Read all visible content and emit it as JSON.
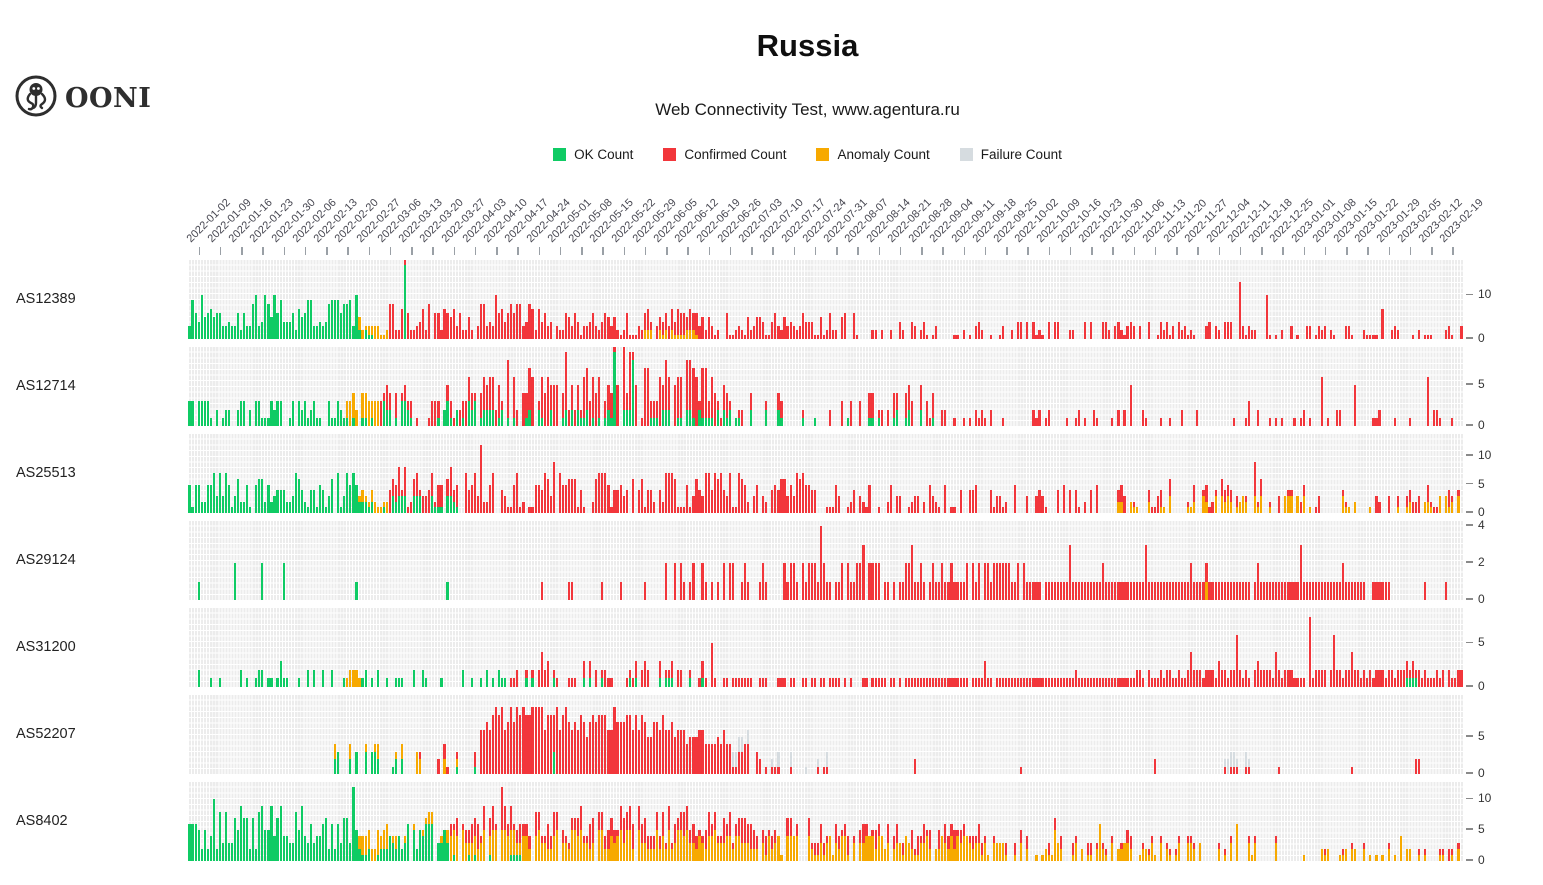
{
  "header": {
    "brand": "OONI"
  },
  "colors": {
    "ok": "#0fcb64",
    "confirmed": "#f2363b",
    "anomaly": "#f7a900",
    "failure": "#d6dce0",
    "plot_bg": "#ececec",
    "grid": "#ffffff",
    "axis_text": "#474751"
  },
  "chart_data": {
    "type": "bar",
    "subtype": "stacked-bars-small-multiples-by-asn",
    "title": "Russia",
    "subtitle": "Web Connectivity Test, www.agentura.ru",
    "legend": [
      {
        "key": "ok",
        "label": "OK Count"
      },
      {
        "key": "confirmed",
        "label": "Confirmed Count"
      },
      {
        "key": "anomaly",
        "label": "Anomaly Count"
      },
      {
        "key": "failure",
        "label": "Failure Count"
      }
    ],
    "x_axis": {
      "start": "2021-12-30",
      "end": "2023-02-22",
      "tick_interval": "weekly",
      "bar_interval": "daily"
    },
    "days_total": 420,
    "week_labels": [
      "2022-01-02",
      "2022-01-09",
      "2022-01-16",
      "2022-01-23",
      "2022-01-30",
      "2022-02-06",
      "2022-02-13",
      "2022-02-20",
      "2022-02-27",
      "2022-03-06",
      "2022-03-13",
      "2022-03-20",
      "2022-03-27",
      "2022-04-03",
      "2022-04-10",
      "2022-04-17",
      "2022-04-24",
      "2022-05-01",
      "2022-05-08",
      "2022-05-15",
      "2022-05-22",
      "2022-05-29",
      "2022-06-05",
      "2022-06-12",
      "2022-06-19",
      "2022-06-26",
      "2022-07-03",
      "2022-07-10",
      "2022-07-17",
      "2022-07-24",
      "2022-07-31",
      "2022-08-07",
      "2022-08-14",
      "2022-08-21",
      "2022-08-28",
      "2022-09-04",
      "2022-09-11",
      "2022-09-18",
      "2022-09-25",
      "2022-10-02",
      "2022-10-09",
      "2022-10-16",
      "2022-10-23",
      "2022-10-30",
      "2022-11-06",
      "2022-11-13",
      "2022-11-20",
      "2022-11-27",
      "2022-12-04",
      "2022-12-11",
      "2022-12-18",
      "2022-12-25",
      "2023-01-01",
      "2023-01-08",
      "2023-01-15",
      "2023-01-22",
      "2023-01-29",
      "2023-02-05",
      "2023-02-12",
      "2023-02-19"
    ],
    "rows": [
      {
        "asn": "AS12389",
        "ymax": 17,
        "yticks": [
          0,
          10
        ],
        "segments": [
          {
            "d": [
              0,
              55
            ],
            "p": 0.97,
            "ok": [
              2,
              10
            ]
          },
          {
            "d": [
              56,
              65
            ],
            "p": 1.0,
            "ok": [
              0,
              2
            ],
            "anomaly": [
              1,
              3
            ]
          },
          {
            "d": [
              66,
              115
            ],
            "p": 0.96,
            "confirmed": [
              2,
              8
            ]
          },
          {
            "d": [
              116,
              149
            ],
            "p": 0.92,
            "confirmed": [
              1,
              6
            ]
          },
          {
            "d": [
              150,
              168
            ],
            "p": 0.95,
            "confirmed": [
              2,
              6
            ],
            "anomaly": [
              0,
              2
            ]
          },
          {
            "d": [
              169,
              220
            ],
            "p": 0.9,
            "confirmed": [
              1,
              6
            ]
          },
          {
            "d": [
              221,
              345
            ],
            "p": 0.55,
            "confirmed": [
              1,
              4
            ]
          },
          {
            "d": [
              346,
              419
            ],
            "p": 0.5,
            "confirmed": [
              1,
              3
            ]
          }
        ],
        "spikes": {
          "71": {
            "ok": 17
          },
          "101": {
            "confirmed": 10
          },
          "346": {
            "confirmed": 13
          },
          "355": {
            "confirmed": 10
          },
          "393": {
            "confirmed": 7
          }
        }
      },
      {
        "asn": "AS12714",
        "ymax": 9,
        "yticks": [
          0,
          5
        ],
        "segments": [
          {
            "d": [
              0,
              51
            ],
            "p": 0.75,
            "ok": [
              1,
              3
            ]
          },
          {
            "d": [
              52,
              62
            ],
            "p": 0.9,
            "ok": [
              0,
              1
            ],
            "anomaly": [
              1,
              3
            ]
          },
          {
            "d": [
              63,
              95
            ],
            "p": 0.85,
            "ok": [
              0,
              3
            ],
            "confirmed": [
              0,
              3
            ]
          },
          {
            "d": [
              96,
              175
            ],
            "p": 0.92,
            "ok": [
              0,
              2
            ],
            "confirmed": [
              1,
              7
            ]
          },
          {
            "d": [
              176,
              245
            ],
            "p": 0.6,
            "ok": [
              0,
              2
            ],
            "confirmed": [
              0,
              3
            ]
          },
          {
            "d": [
              246,
              419
            ],
            "p": 0.28,
            "confirmed": [
              1,
              2
            ]
          }
        ],
        "spikes": {
          "140": {
            "ok": 9
          },
          "143": {
            "confirmed": 8
          },
          "146": {
            "ok": 8
          },
          "150": {
            "confirmed": 7
          },
          "310": {
            "confirmed": 5
          },
          "349": {
            "confirmed": 3
          },
          "373": {
            "confirmed": 6
          },
          "384": {
            "confirmed": 5
          },
          "408": {
            "confirmed": 6
          }
        }
      },
      {
        "asn": "AS25513",
        "ymax": 13,
        "yticks": [
          0,
          5,
          10
        ],
        "segments": [
          {
            "d": [
              0,
              55
            ],
            "p": 0.93,
            "ok": [
              1,
              7
            ]
          },
          {
            "d": [
              56,
              65
            ],
            "p": 0.9,
            "ok": [
              0,
              2
            ],
            "anomaly": [
              1,
              2
            ]
          },
          {
            "d": [
              66,
              90
            ],
            "p": 0.9,
            "ok": [
              0,
              3
            ],
            "confirmed": [
              1,
              5
            ]
          },
          {
            "d": [
              91,
              205
            ],
            "p": 0.9,
            "confirmed": [
              1,
              7
            ]
          },
          {
            "d": [
              206,
              305
            ],
            "p": 0.6,
            "confirmed": [
              1,
              5
            ]
          },
          {
            "d": [
              306,
              419
            ],
            "p": 0.65,
            "confirmed": [
              0,
              3
            ],
            "anomaly": [
              0,
              3
            ]
          }
        ],
        "spikes": {
          "96": {
            "confirmed": 12
          },
          "120": {
            "confirmed": 9
          },
          "351": {
            "confirmed": 6,
            "anomaly": 3
          }
        }
      },
      {
        "asn": "AS29124",
        "ymax": 4,
        "yticks": [
          0,
          2,
          4
        ],
        "segments": [
          {
            "d": [
              0,
              115
            ],
            "p": 0.01,
            "ok": [
              1,
              1
            ]
          },
          {
            "d": [
              116,
              155
            ],
            "p": 0.18,
            "confirmed": [
              1,
              1
            ]
          },
          {
            "d": [
              156,
              195
            ],
            "p": 0.5,
            "confirmed": [
              1,
              2
            ]
          },
          {
            "d": [
              196,
              275
            ],
            "p": 0.9,
            "confirmed": [
              1,
              2
            ]
          },
          {
            "d": [
              276,
              395
            ],
            "p": 0.97,
            "confirmed": [
              1,
              1
            ]
          },
          {
            "d": [
              396,
              419
            ],
            "p": 0.15,
            "confirmed": [
              1,
              1
            ]
          }
        ],
        "spikes": {
          "15": {
            "ok": 2
          },
          "24": {
            "ok": 2
          },
          "31": {
            "ok": 2
          },
          "85": {
            "ok": 1
          },
          "208": {
            "confirmed": 4
          },
          "222": {
            "confirmed": 3
          },
          "238": {
            "confirmed": 3
          },
          "290": {
            "confirmed": 3
          },
          "301": {
            "confirmed": 2
          },
          "315": {
            "confirmed": 3
          },
          "330": {
            "confirmed": 2
          },
          "335": {
            "anomaly": 1
          },
          "352": {
            "confirmed": 2
          },
          "366": {
            "confirmed": 3
          },
          "380": {
            "confirmed": 2
          }
        }
      },
      {
        "asn": "AS31200",
        "ymax": 8.5,
        "yticks": [
          0,
          5
        ],
        "segments": [
          {
            "d": [
              0,
              51
            ],
            "p": 0.35,
            "ok": [
              1,
              2
            ]
          },
          {
            "d": [
              52,
              56
            ],
            "p": 0.9,
            "anomaly": [
              1,
              2
            ]
          },
          {
            "d": [
              57,
              105
            ],
            "p": 0.4,
            "ok": [
              1,
              2
            ]
          },
          {
            "d": [
              106,
              175
            ],
            "p": 0.45,
            "ok": [
              0,
              1
            ],
            "confirmed": [
              1,
              2
            ]
          },
          {
            "d": [
              176,
              238
            ],
            "p": 0.55,
            "confirmed": [
              1,
              1
            ]
          },
          {
            "d": [
              239,
              310
            ],
            "p": 0.95,
            "confirmed": [
              1,
              1
            ]
          },
          {
            "d": [
              311,
              419
            ],
            "p": 0.95,
            "confirmed": [
              1,
              2
            ]
          }
        ],
        "spikes": {
          "30": {
            "ok": 3
          },
          "116": {
            "confirmed": 4
          },
          "118": {
            "confirmed": 3
          },
          "150": {
            "confirmed": 3
          },
          "172": {
            "confirmed": 5
          },
          "262": {
            "confirmed": 3
          },
          "292": {
            "confirmed": 2
          },
          "330": {
            "confirmed": 4
          },
          "339": {
            "confirmed": 3
          },
          "345": {
            "confirmed": 6
          },
          "352": {
            "confirmed": 3
          },
          "358": {
            "confirmed": 4
          },
          "369": {
            "confirmed": 8
          },
          "377": {
            "confirmed": 6
          },
          "383": {
            "confirmed": 4
          },
          "401": {
            "ok": 1
          },
          "402": {
            "ok": 1
          },
          "403": {
            "ok": 1
          },
          "404": {
            "ok": 1
          }
        }
      },
      {
        "asn": "AS52207",
        "ymax": 10,
        "yticks": [
          0,
          5
        ],
        "segments": [
          {
            "d": [
              0,
              45
            ],
            "p": 0.02,
            "ok": [
              1,
              1
            ]
          },
          {
            "d": [
              46,
              70
            ],
            "p": 0.5,
            "ok": [
              1,
              3
            ],
            "anomaly": [
              0,
              2
            ]
          },
          {
            "d": [
              71,
              95
            ],
            "p": 0.5,
            "ok": [
              0,
              1
            ],
            "confirmed": [
              1,
              2
            ],
            "anomaly": [
              0,
              2
            ]
          },
          {
            "d": [
              96,
              130
            ],
            "p": 0.97,
            "confirmed": [
              6,
              9
            ]
          },
          {
            "d": [
              131,
              160
            ],
            "p": 0.97,
            "confirmed": [
              5,
              8
            ]
          },
          {
            "d": [
              161,
              178
            ],
            "p": 0.95,
            "confirmed": [
              4,
              6
            ]
          },
          {
            "d": [
              179,
              192
            ],
            "p": 0.7,
            "confirmed": [
              1,
              4
            ],
            "failure": [
              0,
              2
            ]
          },
          {
            "d": [
              193,
              210
            ],
            "p": 0.4,
            "confirmed": [
              0,
              1
            ],
            "failure": [
              0,
              2
            ]
          },
          {
            "d": [
              211,
              340
            ],
            "p": 0.05,
            "confirmed": [
              1,
              2
            ]
          },
          {
            "d": [
              341,
              352
            ],
            "p": 0.6,
            "confirmed": [
              0,
              1
            ],
            "failure": [
              1,
              3
            ]
          },
          {
            "d": [
              353,
              419
            ],
            "p": 0.07,
            "confirmed": [
              1,
              2
            ]
          }
        ],
        "spikes": {
          "60": {
            "ok": 3
          },
          "75": {
            "anomaly": 3
          },
          "110": {
            "confirmed": 9
          },
          "120": {
            "ok": 3,
            "confirmed": 5
          },
          "140": {
            "confirmed": 9
          }
        }
      },
      {
        "asn": "AS8402",
        "ymax": 12,
        "yticks": [
          0,
          5,
          10
        ],
        "segments": [
          {
            "d": [
              0,
              55
            ],
            "p": 0.97,
            "ok": [
              2,
              9
            ]
          },
          {
            "d": [
              56,
              65
            ],
            "p": 1.0,
            "ok": [
              0,
              2
            ],
            "anomaly": [
              2,
              4
            ]
          },
          {
            "d": [
              66,
              85
            ],
            "p": 0.9,
            "ok": [
              2,
              6
            ],
            "anomaly": [
              0,
              2
            ]
          },
          {
            "d": [
              86,
              110
            ],
            "p": 0.95,
            "ok": [
              0,
              1
            ],
            "anomaly": [
              2,
              5
            ],
            "confirmed": [
              1,
              4
            ]
          },
          {
            "d": [
              111,
              185
            ],
            "p": 0.95,
            "anomaly": [
              2,
              5
            ],
            "confirmed": [
              1,
              4
            ]
          },
          {
            "d": [
              186,
              260
            ],
            "p": 0.85,
            "anomaly": [
              1,
              4
            ],
            "confirmed": [
              0,
              3
            ]
          },
          {
            "d": [
              261,
              310
            ],
            "p": 0.7,
            "anomaly": [
              1,
              3
            ],
            "confirmed": [
              0,
              2
            ]
          },
          {
            "d": [
              311,
              360
            ],
            "p": 0.5,
            "anomaly": [
              1,
              3
            ],
            "confirmed": [
              0,
              1
            ]
          },
          {
            "d": [
              361,
              419
            ],
            "p": 0.4,
            "anomaly": [
              1,
              2
            ],
            "confirmed": [
              0,
              1
            ]
          }
        ],
        "spikes": {
          "8": {
            "ok": 10
          },
          "54": {
            "ok": 12
          },
          "103": {
            "anomaly": 5,
            "confirmed": 7
          },
          "285": {
            "anomaly": 5
          },
          "300": {
            "anomaly": 6
          },
          "345": {
            "anomaly": 6
          },
          "399": {
            "anomaly": 4
          },
          "415": {
            "confirmed": 2
          }
        }
      }
    ]
  }
}
